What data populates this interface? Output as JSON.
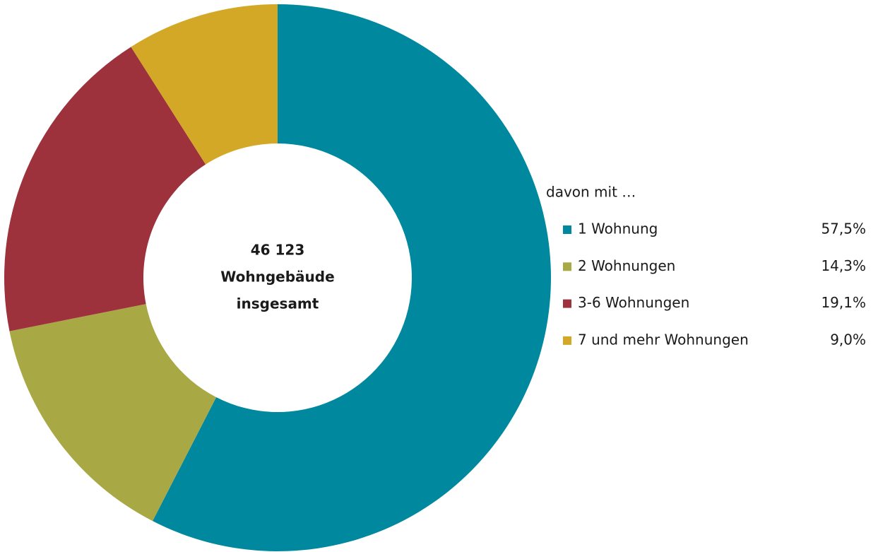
{
  "chart_data": {
    "type": "donut",
    "center_text": [
      "46 123",
      "Wohngebäude",
      "insgesamt"
    ],
    "legend_title": "davon mit …",
    "categories": [
      "1 Wohnung",
      "2 Wohnungen",
      "3-6 Wohnungen",
      "7 und mehr Wohnungen"
    ],
    "values": [
      57.5,
      14.3,
      19.1,
      9.0
    ],
    "value_labels": [
      "57,5%",
      "14,3%",
      "19,1%",
      "9,0%"
    ],
    "colors": [
      "#00889e",
      "#a8a845",
      "#9e323c",
      "#d4a827"
    ],
    "legend": "right"
  }
}
